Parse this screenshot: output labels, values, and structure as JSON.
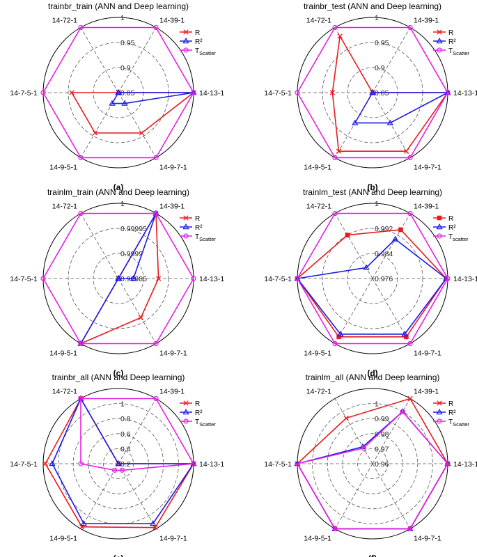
{
  "figure": {
    "colors": {
      "R": "#e8191c",
      "R2": "#1a1ae6",
      "T": "#e51ee5",
      "axis": "#000000",
      "grid": "#555555"
    }
  },
  "chart_data": [
    {
      "id": "a",
      "type": "radar",
      "title": "trainbr_train (ANN and Deep learning)",
      "caption": "(a)",
      "axes": [
        "14-39-1",
        "14-13-1",
        "14-9-7-1",
        "14-9-5-1",
        "14-7-5-1",
        "14-72-1"
      ],
      "rlim": [
        0.85,
        1
      ],
      "rings": [
        0.9,
        0.95,
        1
      ],
      "ring_labels": [
        "0.85",
        "0.9",
        "0.95",
        "1"
      ],
      "legend": {
        "R": "R",
        "R2": "R²",
        "T_main": "T",
        "T_sub": "Scatter"
      },
      "series": [
        {
          "name": "R",
          "marker": "x",
          "values": [
            0.85,
            1.0,
            0.943,
            0.943,
            0.943,
            0.85
          ]
        },
        {
          "name": "R2",
          "marker": "triangle",
          "values": [
            0.85,
            1.0,
            0.875,
            0.875,
            0.85,
            0.85
          ]
        },
        {
          "name": "T",
          "marker": "circle",
          "values": [
            1.0,
            1.0,
            1.0,
            1.0,
            1.0,
            1.0
          ]
        }
      ]
    },
    {
      "id": "b",
      "type": "radar",
      "title": "trainbr_test (ANN and Deep learning)",
      "caption": "(b)",
      "axes": [
        "14-39-1",
        "14-13-1",
        "14-9-7-1",
        "14-9-5-1",
        "14-7-5-1",
        "14-72-1"
      ],
      "rlim": [
        0.85,
        1
      ],
      "rings": [
        0.9,
        0.95,
        1
      ],
      "ring_labels": [
        "0.85",
        "0.9",
        "0.95",
        "1"
      ],
      "legend": {
        "R": "R",
        "R2": "R²",
        "T_main": "T",
        "T_sub": "Scatter"
      },
      "series": [
        {
          "name": "R",
          "marker": "x",
          "values": [
            0.85,
            1.0,
            0.985,
            0.985,
            0.93,
            0.98
          ]
        },
        {
          "name": "R2",
          "marker": "triangle",
          "values": [
            0.85,
            1.0,
            0.92,
            0.92,
            0.85,
            0.85
          ]
        },
        {
          "name": "T",
          "marker": "circle",
          "values": [
            1.0,
            1.0,
            1.0,
            1.0,
            1.0,
            1.0
          ]
        }
      ]
    },
    {
      "id": "c",
      "type": "radar",
      "title": "trainlm_train (ANN and Deep learning)",
      "caption": "(c)",
      "axes": [
        "14-39-1",
        "14-13-1",
        "14-9-7-1",
        "14-9-5-1",
        "14-7-5-1",
        "14-72-1"
      ],
      "rlim": [
        0.99985,
        1
      ],
      "rings": [
        0.9999,
        0.99995,
        1
      ],
      "ring_labels": [
        "0.99985",
        "0.9999",
        "0.99995",
        "1"
      ],
      "legend": {
        "R": "R",
        "R2": "R²",
        "T_main": "T",
        "T_sub": "Scatter"
      },
      "series": [
        {
          "name": "R",
          "marker": "x",
          "values": [
            1.0,
            0.99993,
            0.99994,
            1.0,
            0.99985,
            0.99985
          ]
        },
        {
          "name": "R2",
          "marker": "triangle",
          "values": [
            1.0,
            0.99988,
            0.99985,
            1.0,
            0.99985,
            0.99985
          ]
        },
        {
          "name": "T",
          "marker": "circle",
          "values": [
            1.0,
            1.0,
            1.0,
            1.0,
            1.0,
            1.0
          ]
        }
      ]
    },
    {
      "id": "d",
      "type": "radar",
      "title": "trainlm_test (ANN and Deep learning)",
      "caption": "(d)",
      "axes": [
        "14-39-1",
        "14-13-1",
        "14-9-7-1",
        "14-9-5-1",
        "14-7-5-1",
        "14-72-1"
      ],
      "rlim": [
        0.976,
        1
      ],
      "rings": [
        0.984,
        0.992,
        1
      ],
      "ring_labels": [
        "0.976",
        "0.984",
        "0.992",
        "1"
      ],
      "legend": {
        "R": "R",
        "R2": "R²",
        "T_main": "T",
        "T_sub": "scatter"
      },
      "series": [
        {
          "name": "R",
          "marker": "square",
          "values": [
            0.994,
            0.9995,
            0.9975,
            0.9975,
            1.0,
            0.992
          ]
        },
        {
          "name": "R2",
          "marker": "triangle",
          "values": [
            0.9905,
            0.9995,
            0.9965,
            0.9965,
            1.0,
            0.98
          ]
        },
        {
          "name": "T",
          "marker": "circle",
          "values": [
            1.0,
            1.0,
            1.0,
            1.0,
            1.0,
            1.0
          ]
        }
      ]
    },
    {
      "id": "e",
      "type": "radar",
      "title": "trainbr_all (ANN and Deep learning)",
      "caption": "(e)",
      "axes": [
        "14-39-1",
        "14-13-1",
        "14-9-7-1",
        "14-9-5-1",
        "14-7-5-1",
        "14-72-1"
      ],
      "rlim": [
        0,
        1
      ],
      "rings": [
        0.2,
        0.4,
        0.6,
        0.8,
        1
      ],
      "ring_labels": [
        "0.2",
        "0.4",
        "0.6",
        "0.8",
        "1"
      ],
      "legend": {
        "R": "R",
        "R2": "R²",
        "T_main": "T",
        "T_sub": "Scatter"
      },
      "series": [
        {
          "name": "R",
          "marker": "x",
          "values": [
            0.0,
            1.0,
            0.98,
            0.97,
            0.97,
            1.0
          ]
        },
        {
          "name": "R2",
          "marker": "triangle",
          "values": [
            0.0,
            1.0,
            0.92,
            0.92,
            0.88,
            1.0
          ]
        },
        {
          "name": "T",
          "marker": "circle",
          "values": [
            1.0,
            1.0,
            0.1,
            0.1,
            0.5,
            1.0
          ]
        }
      ]
    },
    {
      "id": "f",
      "type": "radar",
      "title": "trainlm_all (ANN and Deep learning)",
      "caption": "(f)",
      "axes": [
        "14-39-1",
        "14-13-1",
        "14-9-7-1",
        "14-9-5-1",
        "14-7-5-1",
        "14-72-1"
      ],
      "rlim": [
        0.95,
        1
      ],
      "rings": [
        0.96,
        0.97,
        0.98,
        0.99,
        1
      ],
      "ring_labels": [
        "0.96",
        "0.97",
        "0.98",
        "0.99",
        "1"
      ],
      "legend": {
        "R": "R",
        "R2": "R²",
        "T_main": "T",
        "T_sub": "Scatter"
      },
      "series": [
        {
          "name": "R",
          "marker": "x",
          "values": [
            1.0,
            1.0,
            1.0,
            1.0,
            1.0,
            0.985
          ]
        },
        {
          "name": "R2",
          "marker": "triangle",
          "values": [
            0.99,
            1.0,
            1.0,
            1.0,
            1.0,
            0.963
          ]
        },
        {
          "name": "T",
          "marker": "circle",
          "values": [
            0.99,
            1.0,
            1.0,
            1.0,
            1.0,
            0.962
          ]
        }
      ]
    }
  ]
}
